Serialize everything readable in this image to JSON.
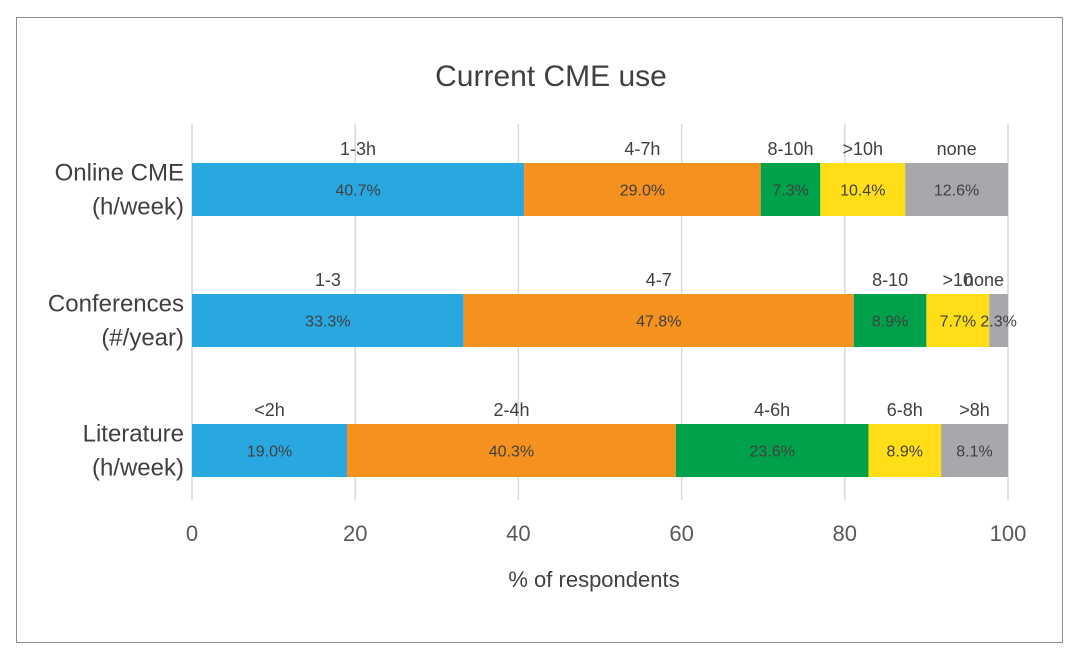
{
  "chart_data": {
    "type": "bar",
    "orientation": "horizontal",
    "stacked": true,
    "title": "Current CME use",
    "xlabel": "% of respondents",
    "ylabel": "",
    "xlim": [
      0,
      100
    ],
    "xticks": [
      "0",
      "20",
      "40",
      "60",
      "80",
      "100"
    ],
    "grid": true,
    "colors": [
      "#29a8e0",
      "#f5911e",
      "#00a14b",
      "#ffdd17",
      "#a6a8ab"
    ],
    "categories": [
      {
        "label_lines": [
          "Online CME",
          "(h/week)"
        ],
        "segments": [
          {
            "label": "1-3h",
            "value": 40.7,
            "value_label": "40.7%"
          },
          {
            "label": "4-7h",
            "value": 29.0,
            "value_label": "29.0%"
          },
          {
            "label": "8-10h",
            "value": 7.3,
            "value_label": "7.3%"
          },
          {
            "label": ">10h",
            "value": 10.4,
            "value_label": "10.4%"
          },
          {
            "label": "none",
            "value": 12.6,
            "value_label": "12.6%"
          }
        ]
      },
      {
        "label_lines": [
          "Conferences",
          "(#/year)"
        ],
        "segments": [
          {
            "label": "1-3",
            "value": 33.3,
            "value_label": "33.3%"
          },
          {
            "label": "4-7",
            "value": 47.8,
            "value_label": "47.8%"
          },
          {
            "label": "8-10",
            "value": 8.9,
            "value_label": "8.9%"
          },
          {
            "label": ">10",
            "value": 7.7,
            "value_label": "7.7%"
          },
          {
            "label": "none",
            "value": 2.3,
            "value_label": "2.3%"
          }
        ]
      },
      {
        "label_lines": [
          "Literature",
          "(h/week)"
        ],
        "segments": [
          {
            "label": "<2h",
            "value": 19.0,
            "value_label": "19.0%"
          },
          {
            "label": "2-4h",
            "value": 40.3,
            "value_label": "40.3%"
          },
          {
            "label": "4-6h",
            "value": 23.6,
            "value_label": "23.6%"
          },
          {
            "label": "6-8h",
            "value": 8.9,
            "value_label": "8.9%"
          },
          {
            "label": ">8h",
            "value": 8.1,
            "value_label": "8.1%"
          }
        ]
      }
    ]
  }
}
